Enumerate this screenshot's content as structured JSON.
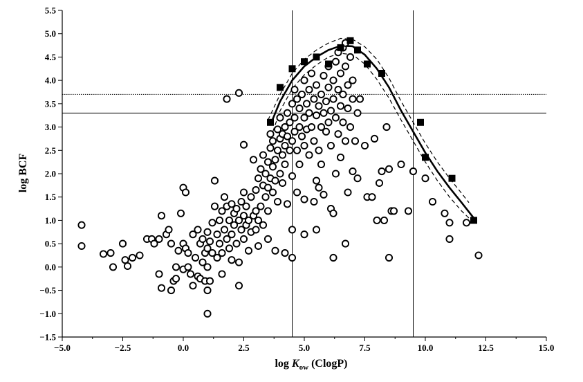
{
  "chart_data": {
    "type": "scatter",
    "xlabel_prefix": "log ",
    "xlabel_var": "K",
    "xlabel_sub": "ow",
    "xlabel_suffix": " (ClogP)",
    "ylabel": "log BCF",
    "xlim": [
      -5.0,
      15.0
    ],
    "ylim": [
      -1.5,
      5.5
    ],
    "xticks": [
      -5.0,
      -2.5,
      0.0,
      2.5,
      5.0,
      7.5,
      10.0,
      12.5,
      15.0
    ],
    "xtick_labels": [
      "−5.0",
      "−2.5",
      "0.0",
      "2.5",
      "5.0",
      "7.5",
      "10.0",
      "12.5",
      "15.0"
    ],
    "yticks": [
      -1.5,
      -1.0,
      -0.5,
      0.0,
      0.5,
      1.0,
      1.5,
      2.0,
      2.5,
      3.0,
      3.5,
      4.0,
      4.5,
      5.0,
      5.5
    ],
    "ytick_labels": [
      "−1.5",
      "−1.0",
      "−0.5",
      "0.0",
      "0.5",
      "1.0",
      "1.5",
      "2.0",
      "2.5",
      "3.0",
      "3.5",
      "4.0",
      "4.5",
      "5.0",
      "5.5"
    ],
    "reference_lines": {
      "vertical": [
        4.5,
        9.5
      ],
      "horizontal_solid": [
        3.3
      ],
      "horizontal_dotted": [
        3.7
      ]
    },
    "fit_curve": [
      [
        3.6,
        3.05
      ],
      [
        4.0,
        3.55
      ],
      [
        4.5,
        4.0
      ],
      [
        5.0,
        4.3
      ],
      [
        5.5,
        4.5
      ],
      [
        6.0,
        4.65
      ],
      [
        6.5,
        4.74
      ],
      [
        7.0,
        4.73
      ],
      [
        7.5,
        4.55
      ],
      [
        8.0,
        4.25
      ],
      [
        8.5,
        3.85
      ],
      [
        9.0,
        3.35
      ],
      [
        9.5,
        2.9
      ],
      [
        10.0,
        2.45
      ],
      [
        10.5,
        2.05
      ],
      [
        11.0,
        1.7
      ],
      [
        11.5,
        1.38
      ],
      [
        12.0,
        1.05
      ]
    ],
    "confidence_upper": [
      [
        3.5,
        3.15
      ],
      [
        4.0,
        3.7
      ],
      [
        4.5,
        4.15
      ],
      [
        5.0,
        4.45
      ],
      [
        5.5,
        4.65
      ],
      [
        6.0,
        4.8
      ],
      [
        6.5,
        4.9
      ],
      [
        7.0,
        4.88
      ],
      [
        7.5,
        4.72
      ],
      [
        8.0,
        4.45
      ],
      [
        8.5,
        4.05
      ],
      [
        9.0,
        3.55
      ],
      [
        9.5,
        3.1
      ],
      [
        10.0,
        2.65
      ],
      [
        10.5,
        2.25
      ],
      [
        11.0,
        1.9
      ],
      [
        11.5,
        1.58
      ],
      [
        11.8,
        1.38
      ]
    ],
    "confidence_lower": [
      [
        3.7,
        2.9
      ],
      [
        4.0,
        3.35
      ],
      [
        4.5,
        3.82
      ],
      [
        5.0,
        4.12
      ],
      [
        5.5,
        4.33
      ],
      [
        6.0,
        4.5
      ],
      [
        6.5,
        4.58
      ],
      [
        7.0,
        4.55
      ],
      [
        7.5,
        4.35
      ],
      [
        8.0,
        4.02
      ],
      [
        8.5,
        3.62
      ],
      [
        9.0,
        3.15
      ],
      [
        9.5,
        2.7
      ],
      [
        10.0,
        2.25
      ],
      [
        10.5,
        1.85
      ],
      [
        11.0,
        1.5
      ],
      [
        11.5,
        1.2
      ],
      [
        12.0,
        0.95
      ]
    ],
    "filled_points": [
      [
        3.6,
        3.1
      ],
      [
        4.0,
        3.85
      ],
      [
        4.5,
        4.25
      ],
      [
        5.0,
        4.4
      ],
      [
        5.5,
        4.5
      ],
      [
        6.0,
        4.35
      ],
      [
        6.5,
        4.7
      ],
      [
        6.9,
        4.85
      ],
      [
        7.2,
        4.65
      ],
      [
        7.6,
        4.35
      ],
      [
        8.2,
        4.15
      ],
      [
        9.8,
        3.1
      ],
      [
        10.0,
        2.35
      ],
      [
        11.1,
        1.9
      ],
      [
        12.0,
        1.0
      ]
    ],
    "open_points": [
      [
        -4.2,
        0.9
      ],
      [
        -4.2,
        0.45
      ],
      [
        -3.3,
        0.28
      ],
      [
        -3.0,
        0.3
      ],
      [
        -2.9,
        0.0
      ],
      [
        -2.5,
        0.5
      ],
      [
        -2.4,
        0.15
      ],
      [
        -2.3,
        0.02
      ],
      [
        -2.1,
        0.2
      ],
      [
        -1.8,
        0.25
      ],
      [
        -1.5,
        0.6
      ],
      [
        -1.3,
        0.6
      ],
      [
        -1.2,
        0.5
      ],
      [
        -1.0,
        0.6
      ],
      [
        -1.0,
        -0.15
      ],
      [
        -0.9,
        1.1
      ],
      [
        -0.9,
        -0.45
      ],
      [
        -0.7,
        0.7
      ],
      [
        -0.6,
        0.8
      ],
      [
        -0.5,
        0.5
      ],
      [
        -0.5,
        -0.5
      ],
      [
        -0.4,
        -0.3
      ],
      [
        -0.3,
        -0.25
      ],
      [
        -0.3,
        0.0
      ],
      [
        -0.2,
        0.35
      ],
      [
        -0.1,
        1.15
      ],
      [
        0.0,
        1.7
      ],
      [
        0.0,
        0.5
      ],
      [
        0.0,
        -0.05
      ],
      [
        0.1,
        1.6
      ],
      [
        0.1,
        0.4
      ],
      [
        0.2,
        0.3
      ],
      [
        0.2,
        0.0
      ],
      [
        0.3,
        -0.15
      ],
      [
        0.4,
        0.7
      ],
      [
        0.4,
        -0.4
      ],
      [
        0.5,
        0.2
      ],
      [
        0.6,
        0.8
      ],
      [
        0.6,
        -0.2
      ],
      [
        0.7,
        0.5
      ],
      [
        0.7,
        -0.25
      ],
      [
        0.8,
        0.6
      ],
      [
        0.8,
        0.1
      ],
      [
        0.9,
        0.3
      ],
      [
        0.9,
        -0.3
      ],
      [
        1.0,
        0.75
      ],
      [
        1.0,
        0.4
      ],
      [
        1.0,
        0.0
      ],
      [
        1.0,
        -0.5
      ],
      [
        1.0,
        -1.0
      ],
      [
        1.1,
        0.55
      ],
      [
        1.1,
        -0.3
      ],
      [
        1.2,
        0.3
      ],
      [
        1.2,
        0.95
      ],
      [
        1.3,
        1.3
      ],
      [
        1.3,
        1.85
      ],
      [
        1.4,
        0.7
      ],
      [
        1.4,
        0.2
      ],
      [
        1.5,
        1.0
      ],
      [
        1.5,
        0.5
      ],
      [
        1.6,
        1.2
      ],
      [
        1.6,
        0.3
      ],
      [
        1.6,
        -0.15
      ],
      [
        1.7,
        1.5
      ],
      [
        1.7,
        0.8
      ],
      [
        1.8,
        1.3
      ],
      [
        1.8,
        0.6
      ],
      [
        1.8,
        3.6
      ],
      [
        1.9,
        1.0
      ],
      [
        1.9,
        0.4
      ],
      [
        2.0,
        1.35
      ],
      [
        2.0,
        0.7
      ],
      [
        2.0,
        0.15
      ],
      [
        2.1,
        1.15
      ],
      [
        2.1,
        0.9
      ],
      [
        2.2,
        1.25
      ],
      [
        2.2,
        0.5
      ],
      [
        2.3,
        1.0
      ],
      [
        2.3,
        0.1
      ],
      [
        2.3,
        -0.4
      ],
      [
        2.3,
        3.73
      ],
      [
        2.4,
        1.4
      ],
      [
        2.4,
        0.8
      ],
      [
        2.5,
        1.6
      ],
      [
        2.5,
        1.1
      ],
      [
        2.5,
        0.6
      ],
      [
        2.5,
        2.62
      ],
      [
        2.6,
        1.3
      ],
      [
        2.6,
        0.9
      ],
      [
        2.7,
        1.0
      ],
      [
        2.7,
        0.35
      ],
      [
        2.8,
        1.5
      ],
      [
        2.8,
        0.75
      ],
      [
        2.9,
        1.1
      ],
      [
        2.9,
        2.3
      ],
      [
        3.0,
        1.65
      ],
      [
        3.0,
        1.2
      ],
      [
        3.0,
        0.8
      ],
      [
        3.1,
        1.9
      ],
      [
        3.1,
        1.0
      ],
      [
        3.1,
        0.45
      ],
      [
        3.2,
        1.3
      ],
      [
        3.2,
        2.1
      ],
      [
        3.3,
        1.75
      ],
      [
        3.3,
        2.4
      ],
      [
        3.3,
        0.9
      ],
      [
        3.4,
        1.5
      ],
      [
        3.4,
        2.0
      ],
      [
        3.5,
        1.2
      ],
      [
        3.5,
        2.25
      ],
      [
        3.5,
        1.7
      ],
      [
        3.5,
        0.6
      ],
      [
        3.6,
        1.9
      ],
      [
        3.6,
        2.55
      ],
      [
        3.6,
        2.85
      ],
      [
        3.7,
        1.6
      ],
      [
        3.7,
        2.15
      ],
      [
        3.7,
        2.7
      ],
      [
        3.8,
        2.3
      ],
      [
        3.8,
        1.85
      ],
      [
        3.8,
        0.35
      ],
      [
        3.9,
        2.5
      ],
      [
        3.9,
        2.95
      ],
      [
        3.9,
        1.4
      ],
      [
        4.0,
        2.0
      ],
      [
        4.0,
        2.75
      ],
      [
        4.0,
        3.2
      ],
      [
        4.1,
        2.4
      ],
      [
        4.1,
        2.85
      ],
      [
        4.1,
        1.8
      ],
      [
        4.2,
        2.6
      ],
      [
        4.2,
        3.0
      ],
      [
        4.2,
        2.2
      ],
      [
        4.2,
        0.3
      ],
      [
        4.3,
        2.8
      ],
      [
        4.3,
        3.3
      ],
      [
        4.3,
        1.35
      ],
      [
        4.4,
        2.5
      ],
      [
        4.4,
        3.1
      ],
      [
        4.5,
        2.7
      ],
      [
        4.5,
        3.5
      ],
      [
        4.5,
        1.95
      ],
      [
        4.5,
        0.8
      ],
      [
        4.5,
        0.2
      ],
      [
        4.6,
        2.9
      ],
      [
        4.6,
        3.2
      ],
      [
        4.6,
        3.8
      ],
      [
        4.7,
        2.5
      ],
      [
        4.7,
        3.6
      ],
      [
        4.7,
        1.6
      ],
      [
        4.8,
        3.0
      ],
      [
        4.8,
        3.4
      ],
      [
        4.8,
        2.2
      ],
      [
        4.9,
        3.7
      ],
      [
        4.9,
        2.8
      ],
      [
        5.0,
        3.2
      ],
      [
        5.0,
        4.0
      ],
      [
        5.0,
        2.6
      ],
      [
        5.0,
        1.45
      ],
      [
        5.0,
        0.7
      ],
      [
        5.1,
        3.5
      ],
      [
        5.1,
        2.95
      ],
      [
        5.2,
        3.8
      ],
      [
        5.2,
        3.3
      ],
      [
        5.2,
        2.4
      ],
      [
        5.3,
        3.0
      ],
      [
        5.3,
        4.15
      ],
      [
        5.4,
        3.6
      ],
      [
        5.4,
        2.7
      ],
      [
        5.4,
        1.4
      ],
      [
        5.5,
        3.25
      ],
      [
        5.5,
        3.9
      ],
      [
        5.5,
        1.85
      ],
      [
        5.5,
        0.8
      ],
      [
        5.6,
        3.45
      ],
      [
        5.6,
        2.5
      ],
      [
        5.6,
        1.7
      ],
      [
        5.7,
        3.7
      ],
      [
        5.7,
        3.0
      ],
      [
        5.7,
        2.2
      ],
      [
        5.8,
        4.1
      ],
      [
        5.8,
        3.3
      ],
      [
        5.8,
        1.55
      ],
      [
        5.9,
        3.55
      ],
      [
        5.9,
        2.9
      ],
      [
        6.0,
        3.85
      ],
      [
        6.0,
        3.1
      ],
      [
        6.0,
        4.3
      ],
      [
        6.1,
        3.35
      ],
      [
        6.1,
        2.6
      ],
      [
        6.1,
        1.25
      ],
      [
        6.2,
        4.0
      ],
      [
        6.2,
        3.6
      ],
      [
        6.2,
        1.15
      ],
      [
        6.2,
        0.2
      ],
      [
        6.3,
        4.4
      ],
      [
        6.3,
        3.2
      ],
      [
        6.3,
        2.0
      ],
      [
        6.4,
        3.8
      ],
      [
        6.4,
        2.85
      ],
      [
        6.4,
        4.6
      ],
      [
        6.5,
        3.45
      ],
      [
        6.5,
        4.15
      ],
      [
        6.5,
        2.35
      ],
      [
        6.6,
        4.7
      ],
      [
        6.6,
        3.7
      ],
      [
        6.6,
        3.1
      ],
      [
        6.7,
        4.8
      ],
      [
        6.7,
        4.3
      ],
      [
        6.7,
        2.7
      ],
      [
        6.7,
        0.5
      ],
      [
        6.8,
        3.9
      ],
      [
        6.8,
        3.4
      ],
      [
        6.8,
        1.6
      ],
      [
        6.9,
        4.5
      ],
      [
        6.9,
        3.0
      ],
      [
        7.0,
        4.0
      ],
      [
        7.0,
        3.6
      ],
      [
        7.0,
        2.05
      ],
      [
        7.1,
        2.7
      ],
      [
        7.2,
        3.3
      ],
      [
        7.2,
        1.9
      ],
      [
        7.3,
        3.6
      ],
      [
        7.5,
        2.6
      ],
      [
        7.6,
        1.5
      ],
      [
        7.8,
        1.5
      ],
      [
        7.9,
        2.75
      ],
      [
        8.0,
        1.0
      ],
      [
        8.1,
        1.8
      ],
      [
        8.2,
        2.05
      ],
      [
        8.3,
        1.0
      ],
      [
        8.4,
        3.0
      ],
      [
        8.5,
        2.1
      ],
      [
        8.5,
        0.2
      ],
      [
        8.6,
        1.2
      ],
      [
        8.7,
        1.2
      ],
      [
        9.0,
        2.2
      ],
      [
        9.3,
        1.2
      ],
      [
        9.5,
        2.05
      ],
      [
        10.0,
        1.9
      ],
      [
        10.3,
        1.4
      ],
      [
        10.8,
        1.15
      ],
      [
        11.0,
        0.95
      ],
      [
        11.0,
        0.6
      ],
      [
        11.7,
        0.95
      ],
      [
        12.2,
        0.25
      ]
    ]
  }
}
